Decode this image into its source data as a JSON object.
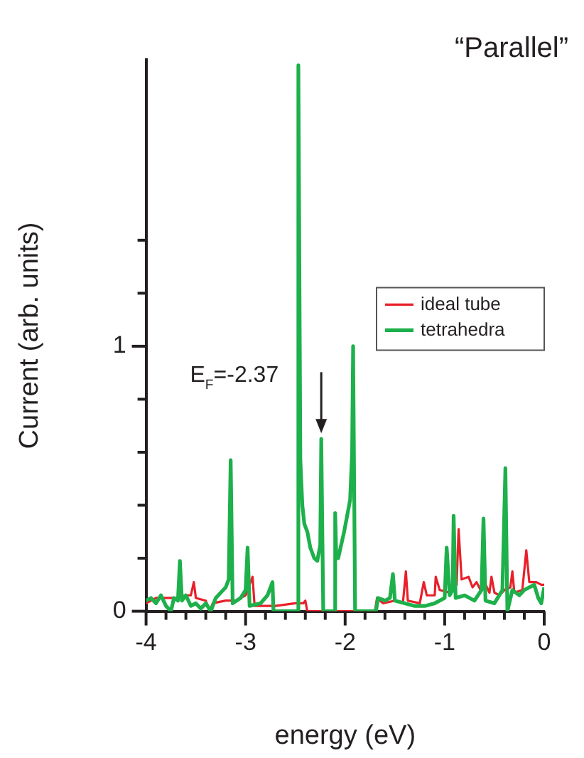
{
  "chart_data": {
    "type": "line",
    "title": "“Parallel”",
    "xlabel": "energy (eV)",
    "ylabel": "Current (arb. units)",
    "xlim": [
      -4,
      0
    ],
    "ylim": [
      0,
      2.08
    ],
    "xticks": [
      -4,
      {
        "value": -3.8,
        "label": null
      },
      {
        "value": -3.6,
        "label": null
      },
      {
        "value": -3.4,
        "label": null
      },
      {
        "value": -3.2,
        "label": null
      },
      -3,
      {
        "value": -2.8,
        "label": null
      },
      {
        "value": -2.6,
        "label": null
      },
      {
        "value": -2.4,
        "label": null
      },
      {
        "value": -2.2,
        "label": null
      },
      -2,
      {
        "value": -1.8,
        "label": null
      },
      {
        "value": -1.6,
        "label": null
      },
      {
        "value": -1.4,
        "label": null
      },
      {
        "value": -1.2,
        "label": null
      },
      -1,
      {
        "value": -0.8,
        "label": null
      },
      {
        "value": -0.6,
        "label": null
      },
      {
        "value": -0.4,
        "label": null
      },
      {
        "value": -0.2,
        "label": null
      },
      0
    ],
    "yticks": [
      0,
      {
        "value": 0.2,
        "label": null
      },
      {
        "value": 0.4,
        "label": null
      },
      {
        "value": 0.6,
        "label": null
      },
      {
        "value": 0.8,
        "label": null
      },
      1,
      {
        "value": 1.2,
        "label": null
      },
      {
        "value": 1.4,
        "label": null
      }
    ],
    "grid": false,
    "legend": "top right",
    "marker": "none",
    "line_style": "solid",
    "annotations": [
      {
        "text": "E$_{F}$=-2.37",
        "x": -2.24,
        "y": 0.65
      }
    ],
    "series": [
      {
        "name": "ideal tube",
        "color": "#e8202a",
        "x": [
          -4.0,
          -3.9,
          -3.8,
          -3.7,
          -3.6,
          -3.55,
          -3.52,
          -3.5,
          -3.4,
          -3.36,
          -3.33,
          -3.2,
          -3.1,
          -3.0,
          -2.93,
          -2.91,
          -2.7,
          -2.5,
          -2.42,
          -2.4,
          -2.38,
          -1.7,
          -1.68,
          -1.62,
          -1.5,
          -1.42,
          -1.39,
          -1.37,
          -1.25,
          -1.21,
          -1.18,
          -1.1,
          -1.09,
          -1.05,
          -0.95,
          -0.88,
          -0.86,
          -0.83,
          -0.76,
          -0.72,
          -0.68,
          -0.64,
          -0.6,
          -0.55,
          -0.53,
          -0.5,
          -0.45,
          -0.4,
          -0.34,
          -0.32,
          -0.3,
          -0.22,
          -0.18,
          -0.15,
          -0.08,
          -0.03,
          0.0
        ],
        "values": [
          0.03,
          0.05,
          0.05,
          0.05,
          0.06,
          0.06,
          0.11,
          0.05,
          0.04,
          0.0,
          0.03,
          0.04,
          0.04,
          0.06,
          0.13,
          0.02,
          0.02,
          0.03,
          0.03,
          0.04,
          0.0,
          0.0,
          0.05,
          0.03,
          0.04,
          0.03,
          0.15,
          0.04,
          0.03,
          0.11,
          0.06,
          0.06,
          0.13,
          0.08,
          0.07,
          0.1,
          0.31,
          0.12,
          0.13,
          0.09,
          0.11,
          0.08,
          0.11,
          0.07,
          0.13,
          0.07,
          0.06,
          0.08,
          0.09,
          0.15,
          0.07,
          0.08,
          0.23,
          0.11,
          0.11,
          0.1,
          0.1
        ]
      },
      {
        "name": "tetrahedra",
        "color": "#1db04b",
        "x": [
          -4.0,
          -3.95,
          -3.9,
          -3.85,
          -3.8,
          -3.75,
          -3.72,
          -3.68,
          -3.66,
          -3.64,
          -3.6,
          -3.55,
          -3.5,
          -3.45,
          -3.4,
          -3.35,
          -3.3,
          -3.25,
          -3.2,
          -3.17,
          -3.15,
          -3.13,
          -3.05,
          -3.0,
          -2.98,
          -2.96,
          -2.85,
          -2.78,
          -2.73,
          -2.72,
          -2.48,
          -2.47,
          -2.45,
          -2.43,
          -2.41,
          -2.38,
          -2.35,
          -2.31,
          -2.28,
          -2.25,
          -2.24,
          -2.22,
          -2.11,
          -2.1,
          -2.09,
          -2.07,
          -2.04,
          -2.01,
          -1.97,
          -1.95,
          -1.93,
          -1.92,
          -1.9,
          -1.69,
          -1.67,
          -1.6,
          -1.55,
          -1.52,
          -1.5,
          -1.4,
          -1.3,
          -1.2,
          -1.1,
          -1.0,
          -0.98,
          -0.95,
          -0.92,
          -0.91,
          -0.89,
          -0.8,
          -0.7,
          -0.63,
          -0.61,
          -0.59,
          -0.5,
          -0.42,
          -0.39,
          -0.37,
          -0.32,
          -0.25,
          -0.2,
          -0.15,
          -0.1,
          -0.06,
          -0.03,
          0.0
        ],
        "values": [
          0.04,
          0.05,
          0.03,
          0.06,
          0.02,
          0.0,
          0.05,
          0.04,
          0.19,
          0.04,
          0.06,
          0.02,
          0.03,
          0.01,
          0.03,
          0.0,
          0.05,
          0.07,
          0.09,
          0.12,
          0.57,
          0.03,
          0.05,
          0.08,
          0.24,
          0.02,
          0.03,
          0.06,
          0.11,
          0.0,
          0.0,
          2.06,
          0.57,
          0.4,
          0.33,
          0.3,
          0.24,
          0.2,
          0.19,
          0.25,
          0.65,
          0.0,
          0.0,
          0.37,
          0.22,
          0.2,
          0.25,
          0.3,
          0.38,
          0.42,
          0.6,
          1.0,
          0.0,
          0.0,
          0.05,
          0.04,
          0.05,
          0.14,
          0.04,
          0.03,
          0.02,
          0.02,
          0.03,
          0.05,
          0.24,
          0.06,
          0.08,
          0.36,
          0.05,
          0.06,
          0.04,
          0.08,
          0.35,
          0.04,
          0.03,
          0.08,
          0.54,
          0.0,
          0.08,
          0.06,
          0.08,
          0.09,
          0.1,
          0.05,
          0.03,
          0.09
        ]
      }
    ]
  }
}
